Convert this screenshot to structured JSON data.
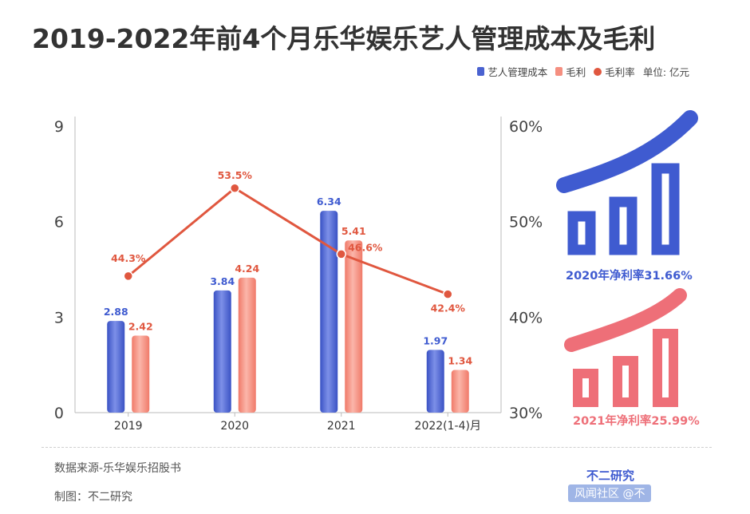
{
  "title": "2019-2022年前4个月乐华娱乐艺人管理成本及毛利",
  "legend": {
    "items": [
      {
        "label": "艺人管理成本",
        "color": "#4a62d0",
        "shape": "bar"
      },
      {
        "label": "毛利",
        "color": "#f58f80",
        "shape": "bar"
      },
      {
        "label": "毛利率",
        "color": "#e0573f",
        "shape": "dot"
      }
    ],
    "unit": "单位: 亿元"
  },
  "chart_data": {
    "type": "bar",
    "categories": [
      "2019",
      "2020",
      "2021",
      "2022(1-4)月"
    ],
    "series": [
      {
        "name": "艺人管理成本",
        "axis": "left",
        "values": [
          2.88,
          3.84,
          6.34,
          1.97
        ],
        "labels": [
          "2.88",
          "3.84",
          "6.34",
          "1.97"
        ],
        "color": "#4a62d0"
      },
      {
        "name": "毛利",
        "axis": "left",
        "values": [
          2.42,
          4.24,
          5.41,
          1.34
        ],
        "labels": [
          "2.42",
          "4.24",
          "5.41",
          "1.34"
        ],
        "color": "#f58f80"
      },
      {
        "name": "毛利率",
        "type": "line",
        "axis": "right",
        "values": [
          44.3,
          53.5,
          46.6,
          42.4
        ],
        "labels": [
          "44.3%",
          "53.5%",
          "46.6%",
          "42.4%"
        ],
        "color": "#e0573f"
      }
    ],
    "y_left": {
      "range": [
        0,
        9
      ],
      "ticks": [
        0,
        3,
        6,
        9
      ],
      "tick_labels": [
        "0",
        "3",
        "6",
        "9"
      ]
    },
    "y_right": {
      "range": [
        30,
        60
      ],
      "ticks": [
        30,
        40,
        50,
        60
      ],
      "tick_labels": [
        "30%",
        "40%",
        "50%",
        "60%"
      ]
    },
    "grid": false
  },
  "cards": [
    {
      "caption": "2020年净利率31.66%",
      "color": "#3f5bd0",
      "icon": "bar-growth-icon"
    },
    {
      "caption": "2021年净利率25.99%",
      "color": "#ee6f78",
      "icon": "bar-growth-icon"
    }
  ],
  "footer": {
    "source": "数据来源-乐华娱乐招股书",
    "maker": "制图：不二研究",
    "brand": "不二研究",
    "watermark": "风闻社区 @不"
  }
}
